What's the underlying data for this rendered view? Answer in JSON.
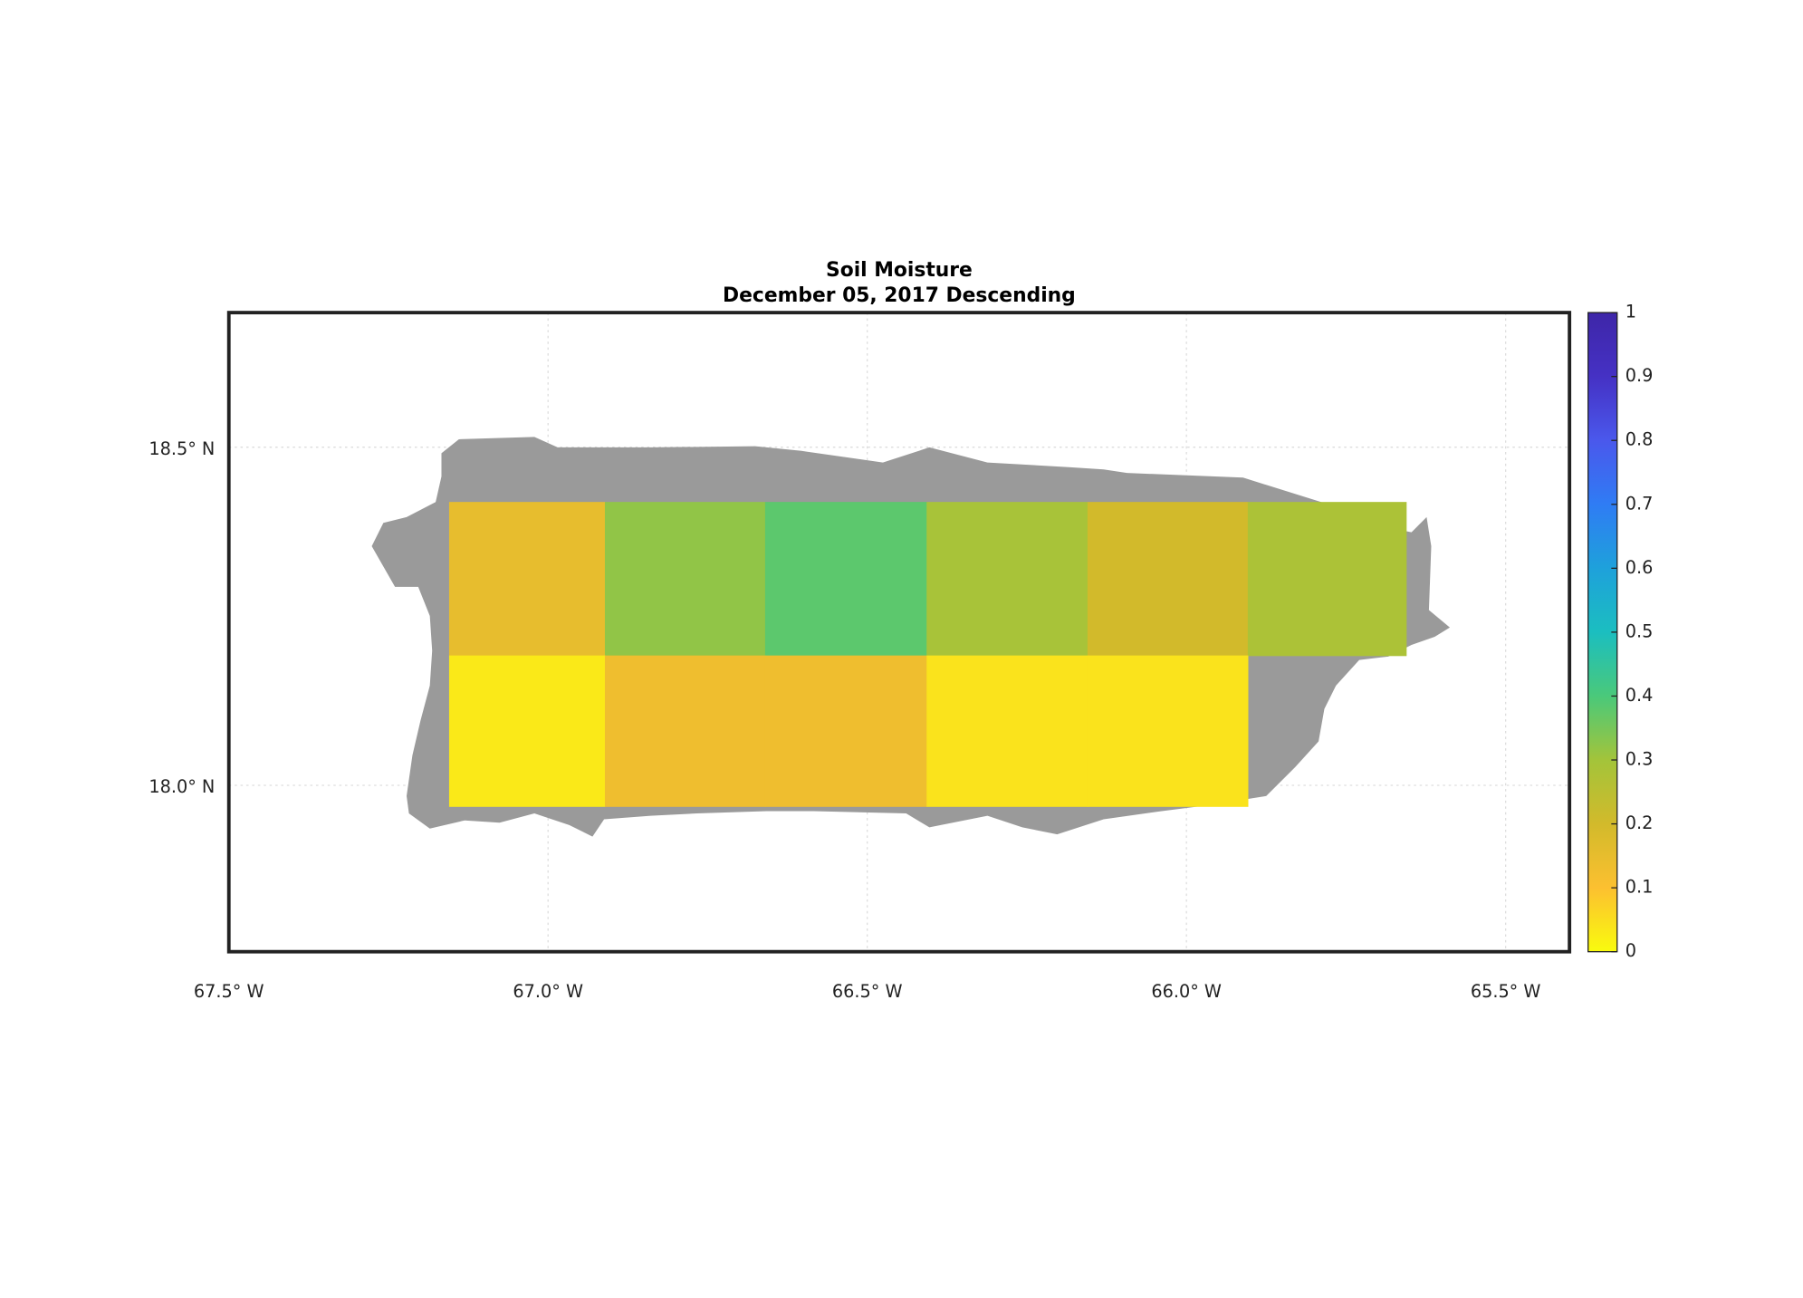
{
  "chart_data": {
    "type": "gridmap",
    "title": "Soil Moisture",
    "subtitle": "December 05, 2017 Descending",
    "xlim": [
      -67.5,
      -65.4
    ],
    "ylim": [
      17.754,
      18.699
    ],
    "xticks": [
      {
        "value": -67.5,
        "label": "67.5° W"
      },
      {
        "value": -67.0,
        "label": "67.0° W"
      },
      {
        "value": -66.5,
        "label": "66.5° W"
      },
      {
        "value": -66.0,
        "label": "66.0° W"
      },
      {
        "value": -65.5,
        "label": "65.5° W"
      }
    ],
    "yticks": [
      {
        "value": 18.0,
        "label": "18.0° N"
      },
      {
        "value": 18.5,
        "label": "18.5° N"
      }
    ],
    "grid": true,
    "lon_edges": [
      -67.155,
      -66.911,
      -66.66,
      -66.407,
      -66.155,
      -65.904,
      -65.656
    ],
    "lat_edges": [
      18.419,
      18.192,
      17.969
    ],
    "values": [
      [
        0.15,
        0.32,
        0.38,
        0.29,
        0.2,
        0.28
      ],
      [
        0.03,
        0.13,
        0.13,
        0.04,
        0.04,
        null
      ]
    ],
    "clim": [
      0,
      1
    ],
    "cticks": [
      0,
      0.1,
      0.2,
      0.3,
      0.4,
      0.5,
      0.6,
      0.7,
      0.8,
      0.9,
      1
    ],
    "colormap": [
      "#f9fb0e",
      "#fcc030",
      "#d2ba2b",
      "#a3c43a",
      "#4ac97a",
      "#1bbec0",
      "#1ea1db",
      "#2f7cf4",
      "#4a58ec",
      "#4531c4",
      "#3e26a8"
    ],
    "land_color": "#9a9a9a"
  }
}
